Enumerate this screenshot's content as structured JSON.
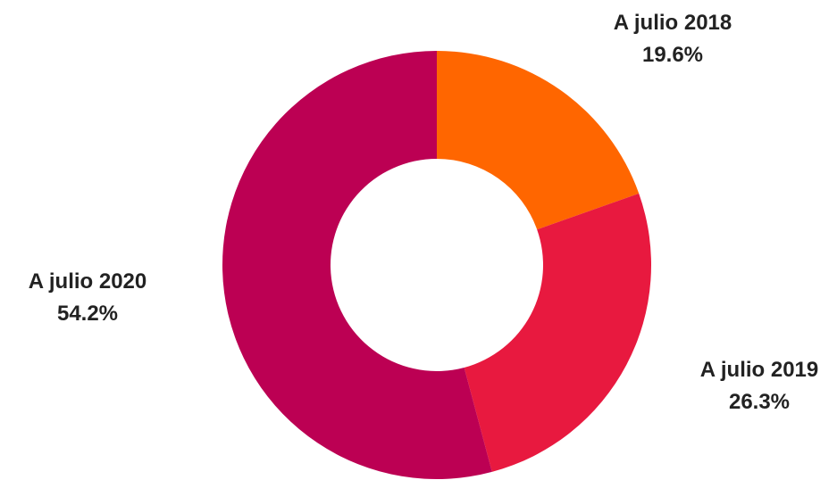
{
  "chart_data": {
    "type": "pie",
    "donut": true,
    "slices": [
      {
        "label": "A julio 2018",
        "value": 19.6,
        "value_label": "19.6%",
        "color": "#FF6600"
      },
      {
        "label": "A julio 2019",
        "value": 26.3,
        "value_label": "26.3%",
        "color": "#E8193F"
      },
      {
        "label": "A julio 2020",
        "value": 54.2,
        "value_label": "54.2%",
        "color": "#BC0053"
      }
    ]
  }
}
